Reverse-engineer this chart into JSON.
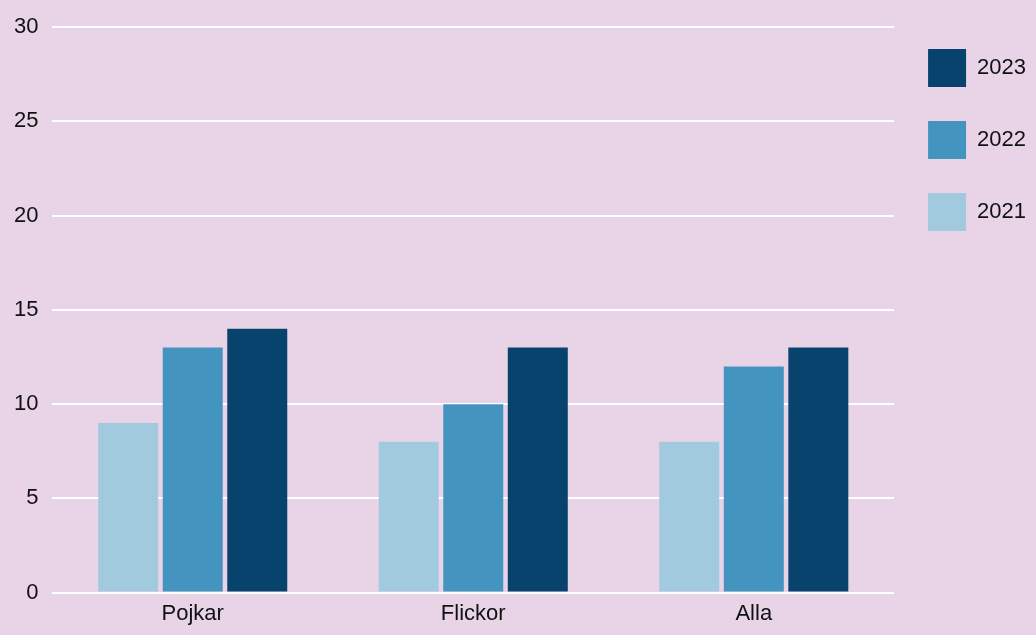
{
  "chart_data": {
    "type": "bar",
    "categories": [
      "Pojkar",
      "Flickor",
      "Alla"
    ],
    "series": [
      {
        "name": "2021",
        "color": "#a2cadf",
        "values": [
          9,
          8,
          8
        ]
      },
      {
        "name": "2022",
        "color": "#4395c0",
        "values": [
          13,
          10,
          12
        ]
      },
      {
        "name": "2023",
        "color": "#08436e",
        "values": [
          14,
          13,
          13
        ]
      }
    ],
    "ylim": [
      0,
      30
    ],
    "yticks": [
      0,
      5,
      10,
      15,
      20,
      25,
      30
    ],
    "grid": "y",
    "legend": "top right"
  }
}
